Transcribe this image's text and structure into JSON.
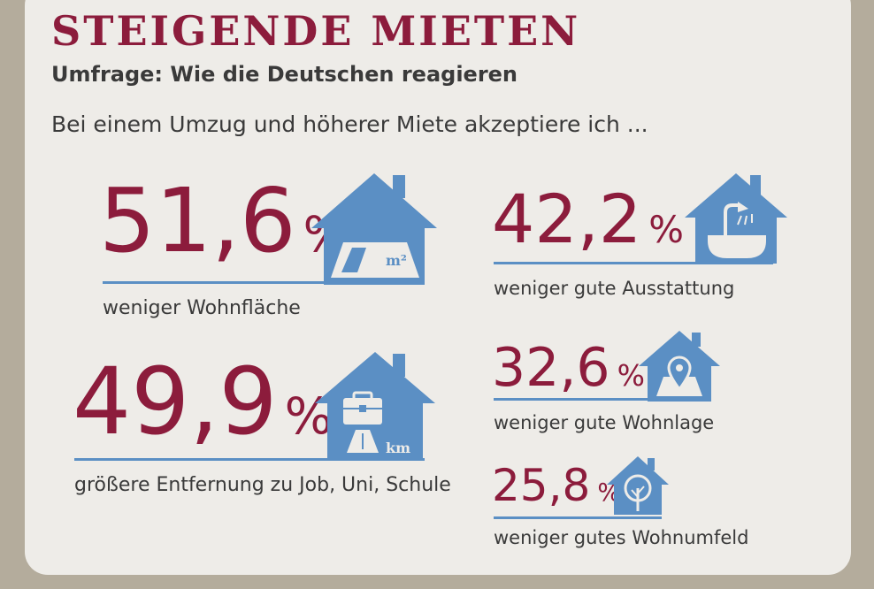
{
  "header": {
    "title": "STEIGENDE MIETEN",
    "subtitle": "Umfrage: Wie die Deutschen reagieren",
    "intro": "Bei einem Umzug und höherer Miete akzeptiere ich ..."
  },
  "stats": [
    {
      "value": "51,6",
      "unit": "%",
      "label": "weniger Wohnfläche",
      "icon": "house-floor-area-icon",
      "icon_text": "m²"
    },
    {
      "value": "42,2",
      "unit": "%",
      "label": "weniger gute Ausstattung",
      "icon": "house-bathtub-icon"
    },
    {
      "value": "49,9",
      "unit": "%",
      "label": "größere Entfernung zu Job, Uni, Schule",
      "icon": "house-briefcase-road-icon",
      "icon_text": "km"
    },
    {
      "value": "32,6",
      "unit": "%",
      "label": "weniger gute Wohnlage",
      "icon": "house-map-pin-icon"
    },
    {
      "value": "25,8",
      "unit": "%",
      "label": "weniger gutes Wohnumfeld",
      "icon": "house-tree-icon"
    }
  ],
  "colors": {
    "accent": "#8c1c3c",
    "icon_blue": "#5b8fc4",
    "background": "#eeece8"
  }
}
